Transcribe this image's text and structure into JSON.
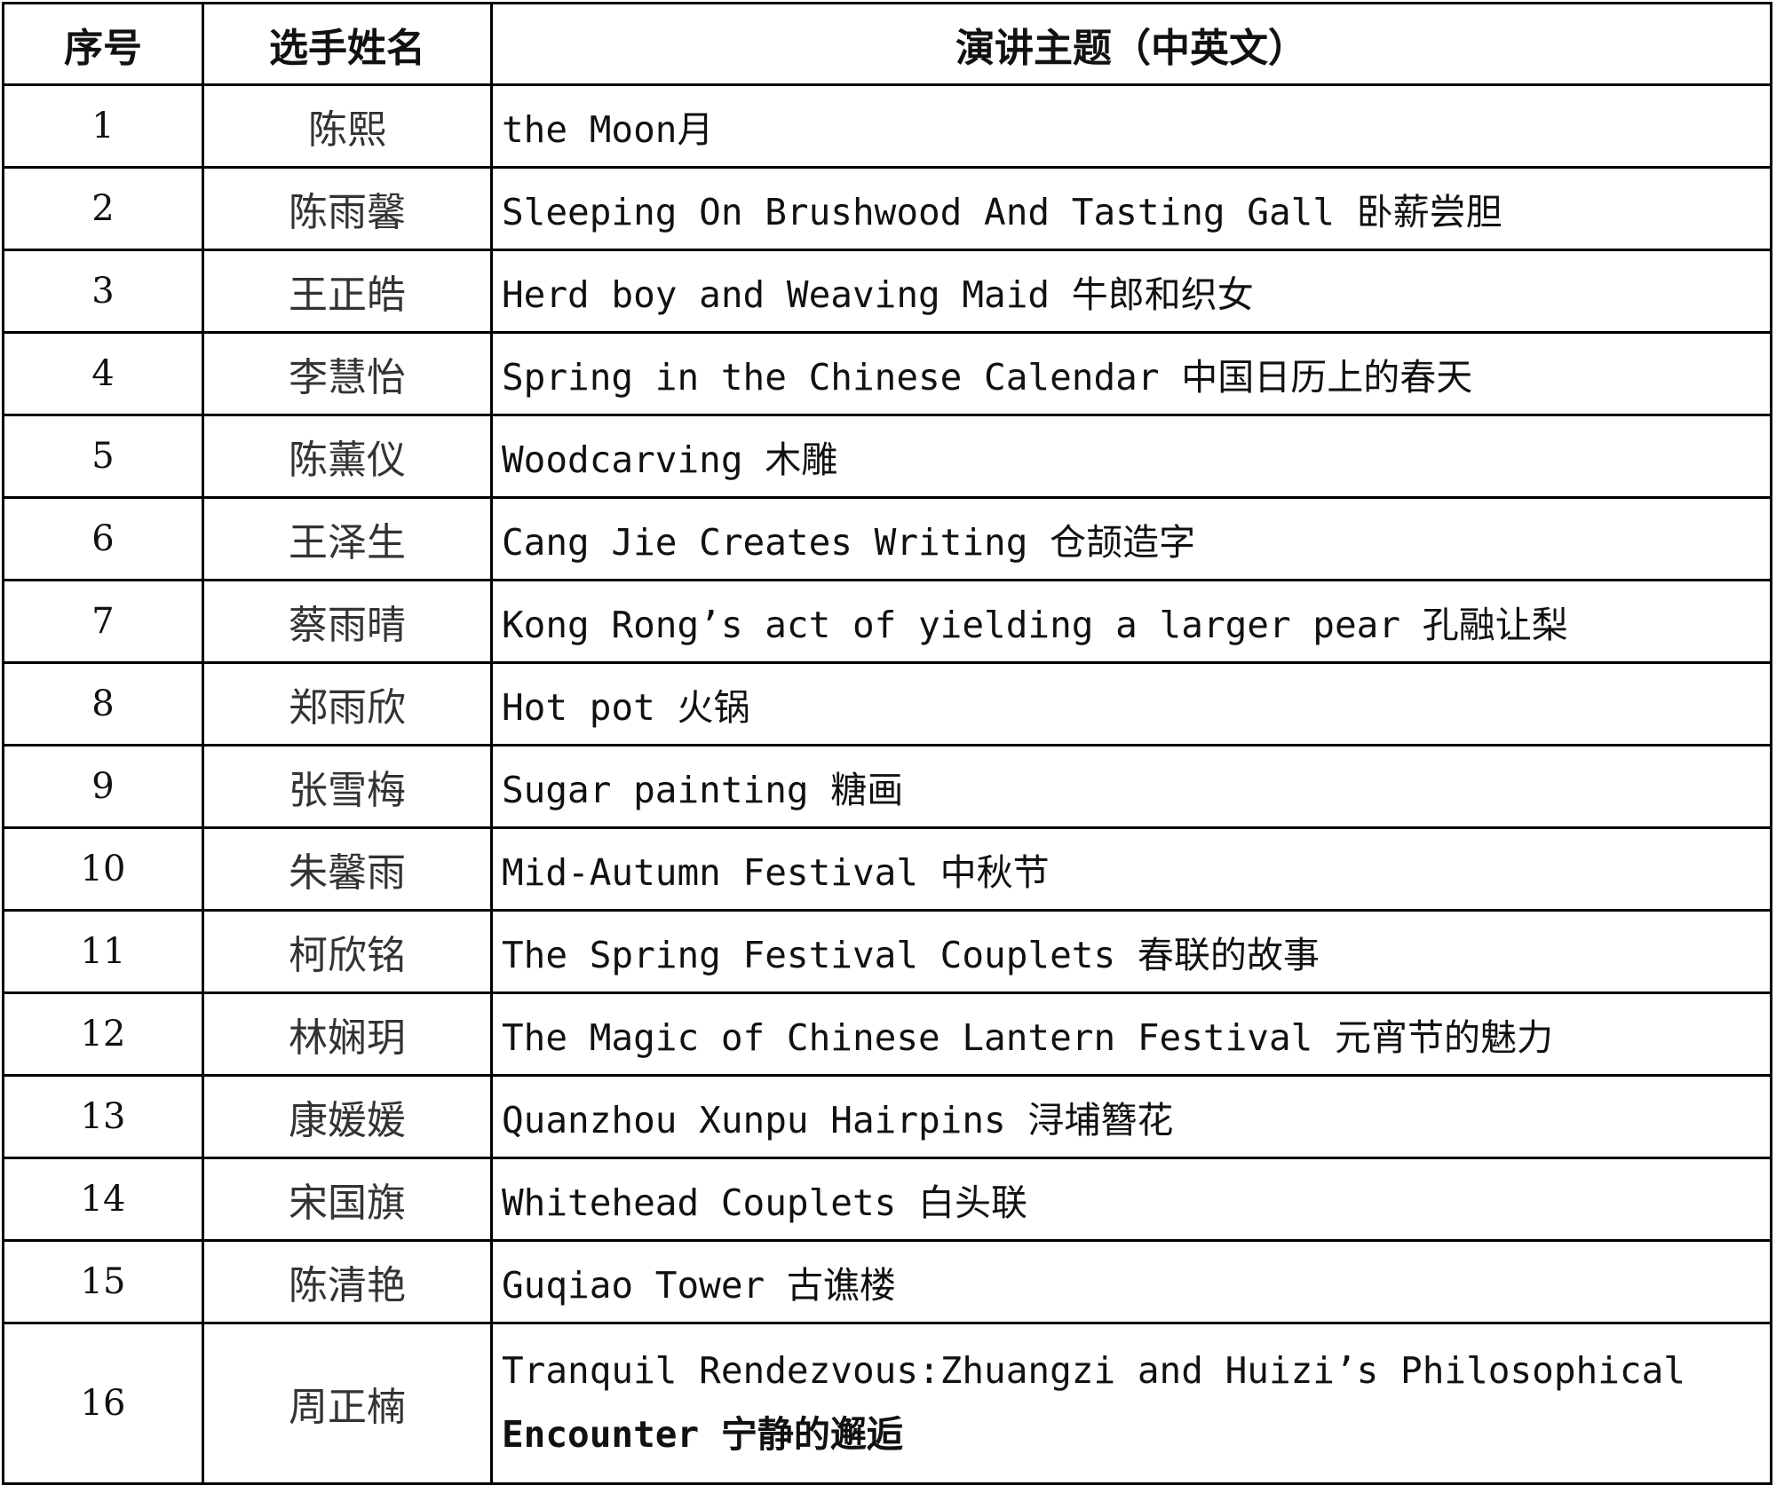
{
  "headers": {
    "index": "序号",
    "name": "选手姓名",
    "topic": "演讲主题（中英文）"
  },
  "rows": [
    {
      "index": "1",
      "name": "陈熙",
      "topic": "the Moon月"
    },
    {
      "index": "2",
      "name": "陈雨馨",
      "topic": "Sleeping On Brushwood And Tasting Gall 卧薪尝胆"
    },
    {
      "index": "3",
      "name": "王正皓",
      "topic": "Herd boy and Weaving Maid 牛郎和织女"
    },
    {
      "index": "4",
      "name": "李慧怡",
      "topic": "Spring in the Chinese Calendar 中国日历上的春天"
    },
    {
      "index": "5",
      "name": "陈薰仪",
      "topic": "Woodcarving 木雕"
    },
    {
      "index": "6",
      "name": "王泽生",
      "topic": "Cang Jie Creates Writing 仓颉造字"
    },
    {
      "index": "7",
      "name": "蔡雨晴",
      "topic": "Kong Rong’s act of yielding a larger pear 孔融让梨"
    },
    {
      "index": "8",
      "name": "郑雨欣",
      "topic": "Hot pot 火锅"
    },
    {
      "index": "9",
      "name": "张雪梅",
      "topic": "Sugar painting 糖画"
    },
    {
      "index": "10",
      "name": "朱馨雨",
      "topic": "Mid-Autumn Festival 中秋节"
    },
    {
      "index": "11",
      "name": "柯欣铭",
      "topic": "The Spring Festival Couplets 春联的故事"
    },
    {
      "index": "12",
      "name": "林娴玥",
      "topic": "The Magic of Chinese Lantern Festival 元宵节的魅力"
    },
    {
      "index": "13",
      "name": "康媛媛",
      "topic": "Quanzhou Xunpu Hairpins 浔埔簪花"
    },
    {
      "index": "14",
      "name": "宋国旗",
      "topic": "Whitehead Couplets 白头联"
    },
    {
      "index": "15",
      "name": "陈清艳",
      "topic": "Guqiao Tower 古谯楼"
    },
    {
      "index": "16",
      "name": "周正楠",
      "topic_line1": "Tranquil Rendezvous:Zhuangzi and Huizi’s Philosophical",
      "topic_line2": "Encounter 宁静的邂逅"
    }
  ]
}
